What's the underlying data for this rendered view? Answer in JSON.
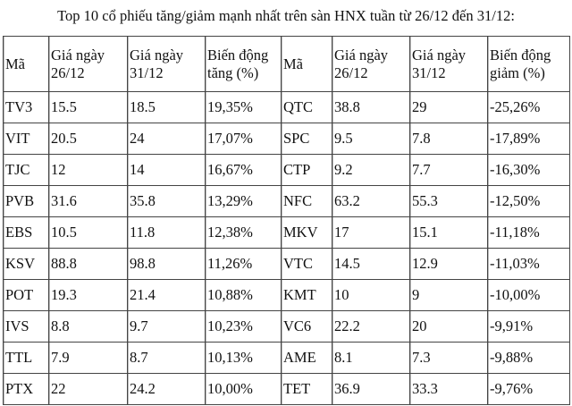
{
  "title": "Top 10 cổ phiếu tăng/giảm mạnh nhất trên sàn HNX tuần từ 26/12 đến 31/12:",
  "headers": [
    "Mã",
    "Giá ngày 26/12",
    "Giá ngày 31/12",
    "Biến động tăng (%)",
    "Mã",
    "Giá ngày 26/12",
    "Giá ngày 31/12",
    "Biến động giảm (%)"
  ],
  "rows": [
    [
      "TV3",
      "15.5",
      "18.5",
      "19,35%",
      "QTC",
      "38.8",
      "29",
      "-25,26%"
    ],
    [
      "VIT",
      "20.5",
      "24",
      "17,07%",
      "SPC",
      "9.5",
      "7.8",
      "-17,89%"
    ],
    [
      "TJC",
      "12",
      "14",
      "16,67%",
      "CTP",
      "9.2",
      "7.7",
      "-16,30%"
    ],
    [
      "PVB",
      "31.6",
      "35.8",
      "13,29%",
      "NFC",
      "63.2",
      "55.3",
      "-12,50%"
    ],
    [
      "EBS",
      "10.5",
      "11.8",
      "12,38%",
      "MKV",
      "17",
      "15.1",
      "-11,18%"
    ],
    [
      "KSV",
      "88.8",
      "98.8",
      "11,26%",
      "VTC",
      "14.5",
      "12.9",
      "-11,03%"
    ],
    [
      "POT",
      "19.3",
      "21.4",
      "10,88%",
      "KMT",
      "10",
      "9",
      "-10,00%"
    ],
    [
      "IVS",
      "8.8",
      "9.7",
      "10,23%",
      "VC6",
      "22.2",
      "20",
      "-9,91%"
    ],
    [
      "TTL",
      "7.9",
      "8.7",
      "10,13%",
      "AME",
      "8.1",
      "7.3",
      "-9,88%"
    ],
    [
      "PTX",
      "22",
      "24.2",
      "10,00%",
      "TET",
      "36.9",
      "33.3",
      "-9,76%"
    ]
  ]
}
